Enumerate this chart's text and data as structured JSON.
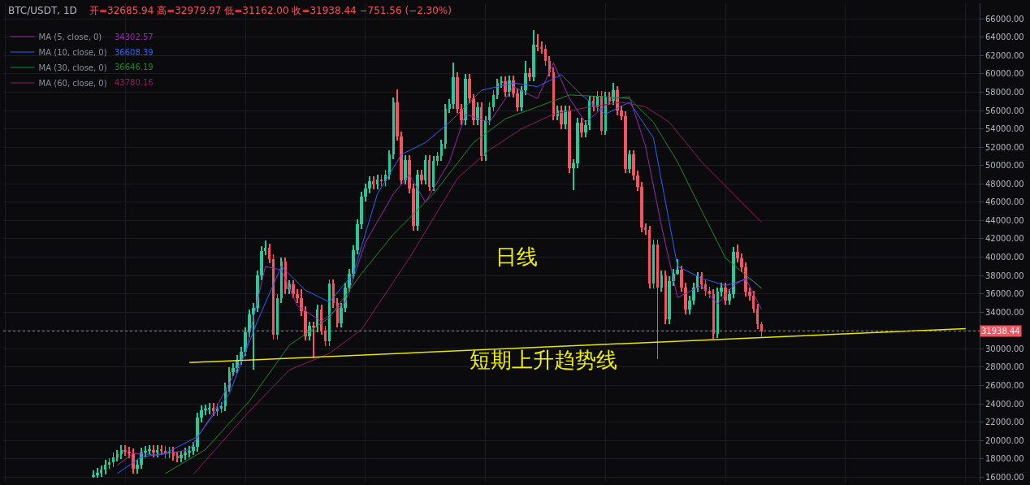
{
  "chart_data": {
    "type": "candlestick",
    "title": "BTC/USDT, 1D",
    "subtitle": "开=32685.94 高=32979.97 低=31162.00 收=31938.44 −751.56 (−2.30%)",
    "categories": [
      null,
      null,
      null,
      null,
      null,
      null,
      null,
      null,
      null,
      null,
      null,
      null,
      null,
      null,
      null,
      null,
      null,
      null,
      null,
      null,
      null,
      null,
      null,
      null,
      null,
      null,
      null,
      null,
      null,
      null,
      null,
      null,
      null,
      null,
      null,
      null,
      null,
      null,
      null,
      null,
      null,
      null,
      null,
      null,
      null,
      null,
      null,
      null,
      null,
      null,
      null,
      null,
      null,
      null,
      null,
      null,
      null,
      null,
      null,
      null,
      null,
      null,
      null,
      null,
      null,
      null,
      null,
      null,
      null,
      null,
      null,
      null,
      null,
      null,
      null,
      null,
      null,
      null,
      null,
      null,
      null,
      null,
      null,
      null,
      null,
      null,
      null,
      null,
      null,
      null,
      null,
      null,
      null,
      null,
      null,
      null,
      null,
      null,
      null,
      null,
      null,
      null,
      null,
      null,
      null,
      null,
      null,
      null,
      null,
      null,
      null,
      null,
      null,
      null,
      null,
      null,
      null,
      null,
      null,
      null,
      null,
      null,
      null,
      null,
      null,
      null,
      null,
      null,
      null,
      null,
      null,
      null,
      null,
      null,
      null,
      null,
      null,
      null,
      null,
      null,
      null,
      null,
      null,
      null,
      null,
      null,
      null,
      null,
      null,
      null,
      null,
      null,
      null,
      null,
      null,
      null,
      null,
      null,
      null,
      null,
      null,
      null,
      null,
      null,
      null,
      null,
      null,
      null,
      null,
      null,
      null,
      null,
      null,
      null,
      null,
      null,
      null,
      null,
      null,
      null,
      null,
      null,
      null,
      null,
      null,
      null,
      null,
      null,
      null,
      null,
      null,
      null,
      null,
      null,
      null,
      null,
      null,
      null,
      null,
      null,
      null,
      null,
      null,
      null,
      null,
      null,
      null,
      null,
      null,
      null,
      null,
      null,
      null,
      null,
      null,
      null,
      null,
      null,
      null,
      null,
      null,
      null,
      null,
      null,
      null,
      null,
      null,
      null,
      null,
      null,
      null,
      null,
      null,
      null,
      null,
      null,
      null,
      null,
      null,
      null,
      null,
      null,
      null,
      null
    ],
    "ohlc": [
      null,
      null,
      null,
      null,
      null,
      null,
      null,
      null,
      null,
      null,
      null,
      null,
      null,
      null,
      null,
      null,
      null,
      null,
      null,
      null,
      null,
      null,
      [
        16000,
        16700,
        15900,
        16200
      ],
      [
        16200,
        17000,
        15900,
        16500
      ],
      [
        16500,
        17300,
        16000,
        16800
      ],
      [
        16800,
        17900,
        16300,
        17400
      ],
      [
        17400,
        18100,
        16900,
        17600
      ],
      [
        17600,
        18700,
        17100,
        18200
      ],
      [
        18200,
        19000,
        17700,
        18500
      ],
      [
        18500,
        19500,
        18000,
        19000
      ],
      [
        19000,
        19500,
        18300,
        18800
      ],
      [
        18800,
        19300,
        18100,
        18600
      ],
      [
        18600,
        19100,
        16400,
        16900
      ],
      [
        16900,
        17900,
        16400,
        17400
      ],
      [
        17400,
        19200,
        16900,
        18700
      ],
      [
        18700,
        19400,
        18200,
        18900
      ],
      [
        18900,
        19500,
        18400,
        19000
      ],
      [
        19000,
        19500,
        18200,
        18700
      ],
      [
        18700,
        19500,
        18200,
        19000
      ],
      [
        19000,
        19500,
        18400,
        18900
      ],
      [
        18900,
        19400,
        18100,
        18600
      ],
      [
        18600,
        19300,
        18100,
        18800
      ],
      [
        18800,
        19300,
        17800,
        18300
      ],
      [
        18300,
        18800,
        17600,
        18100
      ],
      [
        18100,
        18900,
        17600,
        18400
      ],
      [
        18400,
        19200,
        17900,
        18700
      ],
      [
        18700,
        19400,
        18200,
        18900
      ],
      [
        18900,
        19800,
        18400,
        19300
      ],
      [
        19300,
        23000,
        18800,
        22500
      ],
      [
        22500,
        23800,
        22000,
        23300
      ],
      [
        23300,
        23900,
        22800,
        23400
      ],
      [
        23400,
        24100,
        22900,
        23600
      ],
      [
        23600,
        24100,
        22700,
        23200
      ],
      [
        23200,
        24000,
        22700,
        23500
      ],
      [
        23500,
        24200,
        23000,
        23700
      ],
      [
        23700,
        26300,
        23200,
        25800
      ],
      [
        25800,
        28000,
        25300,
        27500
      ],
      [
        27500,
        28400,
        27000,
        27900
      ],
      [
        27900,
        29300,
        27400,
        28800
      ],
      [
        28800,
        30200,
        28300,
        29700
      ],
      [
        29700,
        32300,
        29200,
        31800
      ],
      [
        31800,
        34300,
        31300,
        33800
      ],
      [
        33800,
        35000,
        27700,
        34500
      ],
      [
        34500,
        38500,
        34000,
        38000
      ],
      [
        38000,
        41200,
        37500,
        40700
      ],
      [
        40700,
        41800,
        40200,
        41000
      ],
      [
        41000,
        41500,
        39300,
        39800
      ],
      [
        39800,
        40300,
        31000,
        31500
      ],
      [
        31500,
        36000,
        31000,
        35500
      ],
      [
        35500,
        40000,
        35000,
        39500
      ],
      [
        39500,
        40000,
        36000,
        36500
      ],
      [
        36500,
        37500,
        36000,
        37000
      ],
      [
        37000,
        37500,
        35500,
        36000
      ],
      [
        36000,
        36500,
        35000,
        35500
      ],
      [
        35500,
        36500,
        33600,
        34100
      ],
      [
        34100,
        34600,
        30900,
        31400
      ],
      [
        31400,
        33000,
        30900,
        32500
      ],
      [
        32500,
        33000,
        29000,
        32300
      ],
      [
        32300,
        34800,
        31800,
        34300
      ],
      [
        34300,
        34800,
        31500,
        32000
      ],
      [
        32000,
        32500,
        30300,
        30800
      ],
      [
        30800,
        37600,
        30300,
        37100
      ],
      [
        37100,
        37600,
        34500,
        35000
      ],
      [
        35000,
        35500,
        32300,
        32800
      ],
      [
        32800,
        35000,
        32300,
        34500
      ],
      [
        34500,
        37200,
        34000,
        36700
      ],
      [
        36700,
        38700,
        36200,
        38200
      ],
      [
        38200,
        41300,
        37700,
        40800
      ],
      [
        40800,
        44100,
        40300,
        43600
      ],
      [
        43600,
        47100,
        43100,
        46600
      ],
      [
        46600,
        48000,
        46100,
        47500
      ],
      [
        47500,
        48800,
        47000,
        48300
      ],
      [
        48300,
        48800,
        47400,
        47900
      ],
      [
        47900,
        49000,
        47400,
        48500
      ],
      [
        48500,
        49000,
        47800,
        48300
      ],
      [
        48300,
        49500,
        47800,
        49000
      ],
      [
        49000,
        51700,
        48500,
        51200
      ],
      [
        51200,
        57400,
        50700,
        56900
      ],
      [
        56900,
        58300,
        52700,
        53200
      ],
      [
        53200,
        53700,
        47900,
        48400
      ],
      [
        48400,
        51100,
        47900,
        50600
      ],
      [
        50600,
        51100,
        47000,
        47500
      ],
      [
        47500,
        48000,
        42900,
        43400
      ],
      [
        43400,
        49500,
        42900,
        49000
      ],
      [
        49000,
        49500,
        47900,
        48400
      ],
      [
        48400,
        51100,
        47900,
        50600
      ],
      [
        50600,
        51100,
        47200,
        47700
      ],
      [
        47700,
        51000,
        47200,
        50500
      ],
      [
        50500,
        51500,
        50000,
        51000
      ],
      [
        51000,
        52850,
        50500,
        52350
      ],
      [
        52350,
        56700,
        51850,
        56200
      ],
      [
        56200,
        57200,
        55700,
        56700
      ],
      [
        56700,
        61200,
        56200,
        59650
      ],
      [
        59650,
        60150,
        55700,
        56200
      ],
      [
        56200,
        56700,
        54400,
        54900
      ],
      [
        54900,
        60000,
        54400,
        59500
      ],
      [
        59500,
        60000,
        56800,
        57300
      ],
      [
        57300,
        57800,
        54400,
        54900
      ],
      [
        54900,
        56900,
        54400,
        56400
      ],
      [
        56400,
        56900,
        50500,
        51000
      ],
      [
        51000,
        55400,
        50500,
        54900
      ],
      [
        54900,
        56900,
        54400,
        56400
      ],
      [
        56400,
        58200,
        55900,
        57700
      ],
      [
        57700,
        59500,
        57200,
        59000
      ],
      [
        59000,
        59700,
        58500,
        59200
      ],
      [
        59200,
        59700,
        57500,
        58000
      ],
      [
        58000,
        59800,
        57500,
        59300
      ],
      [
        59300,
        59800,
        57400,
        57900
      ],
      [
        57900,
        58400,
        55900,
        56400
      ],
      [
        56400,
        58700,
        55900,
        58200
      ],
      [
        58200,
        61400,
        57700,
        60100
      ],
      [
        60100,
        60600,
        59150,
        59650
      ],
      [
        59650,
        64800,
        59150,
        63200
      ],
      [
        63200,
        64300,
        62450,
        62950
      ],
      [
        62950,
        63500,
        62200,
        62700
      ],
      [
        62700,
        63200,
        60900,
        61400
      ],
      [
        61400,
        61900,
        59700,
        60200
      ],
      [
        60200,
        60700,
        54900,
        55400
      ],
      [
        55400,
        56500,
        54900,
        56000
      ],
      [
        56000,
        56500,
        54000,
        54500
      ],
      [
        54500,
        56500,
        54000,
        56000
      ],
      [
        56000,
        56500,
        49200,
        49700
      ],
      [
        49700,
        50700,
        47300,
        50200
      ],
      [
        50200,
        55200,
        49700,
        54700
      ],
      [
        54700,
        55200,
        53100,
        53600
      ],
      [
        53600,
        54900,
        53100,
        54400
      ],
      [
        54400,
        57600,
        53900,
        57100
      ],
      [
        57100,
        57600,
        55900,
        56400
      ],
      [
        56400,
        58100,
        55900,
        57600
      ],
      [
        57600,
        58100,
        53300,
        53800
      ],
      [
        53800,
        58000,
        53300,
        57500
      ],
      [
        57500,
        58000,
        56600,
        57100
      ],
      [
        57100,
        59000,
        56600,
        58200
      ],
      [
        58200,
        58700,
        55500,
        56000
      ],
      [
        56000,
        56500,
        54900,
        55400
      ],
      [
        55400,
        55900,
        49150,
        49650
      ],
      [
        49650,
        51700,
        49150,
        51200
      ],
      [
        51200,
        51700,
        48400,
        48900
      ],
      [
        48900,
        49400,
        47200,
        47700
      ],
      [
        47700,
        48200,
        42700,
        43200
      ],
      [
        43200,
        43700,
        42450,
        42950
      ],
      [
        42950,
        43450,
        36600,
        37100
      ],
      [
        37100,
        41900,
        36600,
        41400
      ],
      [
        41400,
        41900,
        28900,
        36700
      ],
      [
        36700,
        38500,
        36200,
        38000
      ],
      [
        38000,
        38500,
        32700,
        33200
      ],
      [
        33200,
        37900,
        32700,
        37400
      ],
      [
        37400,
        38700,
        36900,
        38200
      ],
      [
        38200,
        39800,
        38100,
        38600
      ],
      [
        38600,
        39100,
        36200,
        36700
      ],
      [
        36700,
        37200,
        33800,
        34300
      ],
      [
        34300,
        35800,
        33800,
        35300
      ],
      [
        35300,
        37200,
        34800,
        36700
      ],
      [
        36700,
        38400,
        36200,
        37900
      ],
      [
        37900,
        38400,
        36500,
        37000
      ],
      [
        37000,
        37500,
        35800,
        36300
      ],
      [
        36300,
        36800,
        35500,
        36000
      ],
      [
        36000,
        36500,
        31100,
        31650
      ],
      [
        31650,
        36700,
        31150,
        36200
      ],
      [
        36200,
        37200,
        35700,
        36700
      ],
      [
        36700,
        37200,
        34800,
        35300
      ],
      [
        35300,
        36500,
        34800,
        36000
      ],
      [
        36000,
        41100,
        35500,
        40600
      ],
      [
        40600,
        41400,
        39400,
        39900
      ],
      [
        39900,
        40400,
        38400,
        38900
      ],
      [
        38900,
        39400,
        35700,
        36200
      ],
      [
        36200,
        36700,
        35300,
        35800
      ],
      [
        35800,
        36300,
        33900,
        34400
      ],
      [
        34400,
        34900,
        32200,
        32685.94
      ],
      [
        32685.94,
        32979.97,
        31162.0,
        31938.44
      ],
      null,
      null,
      null,
      null,
      null,
      null,
      null,
      null,
      null,
      null,
      null,
      null,
      null,
      null,
      null,
      null,
      null,
      null,
      null,
      null,
      null,
      null,
      null,
      null,
      null,
      null,
      null,
      null,
      null,
      null,
      null,
      null,
      null,
      null,
      null,
      null,
      null,
      null,
      null,
      null,
      null,
      null,
      null,
      null,
      null,
      null,
      null,
      null,
      null,
      null,
      null,
      null,
      null,
      null
    ],
    "series": [
      {
        "name": "MA (5, close, 0)",
        "type": "line",
        "color": "#9c27b0",
        "values": [
          null,
          null,
          null,
          null,
          null,
          null,
          null,
          null,
          null,
          null,
          null,
          null,
          null,
          null,
          null,
          null,
          null,
          null,
          null,
          null,
          null,
          null,
          null,
          null,
          null,
          null,
          null,
          null,
          17300,
          null,
          null,
          null,
          18600,
          null,
          null,
          null,
          null,
          null,
          18400,
          null,
          null,
          null,
          null,
          null,
          null,
          null,
          19000,
          null,
          null,
          null,
          null,
          null,
          23000,
          null,
          null,
          null,
          null,
          null,
          null,
          null,
          29500,
          null,
          null,
          null,
          null,
          39000,
          null,
          null,
          null,
          38600,
          null,
          null,
          null,
          34700,
          null,
          null,
          null,
          null,
          null,
          33000,
          null,
          null,
          null,
          null,
          null,
          35100,
          null,
          null,
          null,
          null,
          41600,
          null,
          null,
          null,
          null,
          null,
          null,
          46900,
          null,
          null,
          null,
          49000,
          null,
          null,
          null,
          46000,
          null,
          null,
          null,
          null,
          null,
          50400,
          null,
          null,
          null,
          55600,
          null,
          null,
          null,
          null,
          null,
          54700,
          null,
          null,
          null,
          null,
          null,
          58600,
          null,
          null,
          null,
          null,
          null,
          57300,
          null,
          null,
          null,
          61200,
          null,
          null,
          null,
          57300,
          null,
          null,
          null,
          54700,
          null,
          null,
          null,
          null,
          null,
          null,
          57300,
          null,
          null,
          null,
          57500,
          null,
          null,
          null,
          52100,
          null,
          null,
          null,
          43400,
          null,
          null,
          null,
          35600,
          null,
          null,
          null,
          null,
          null,
          36900,
          null,
          null,
          null,
          34900,
          null,
          null,
          null,
          36900,
          null,
          null,
          37700,
          null,
          36000,
          null,
          34300,
          null,
          null,
          null,
          null,
          null,
          null,
          null,
          null,
          null,
          null,
          null,
          null,
          null,
          null,
          null,
          null,
          null,
          null,
          null,
          null,
          null,
          null,
          null,
          null,
          null,
          null,
          null,
          null,
          null,
          null,
          null,
          null,
          null,
          null,
          null,
          null,
          null,
          null,
          null,
          null,
          null,
          null,
          null,
          null,
          null,
          null,
          null,
          null,
          null,
          null,
          null,
          null,
          null,
          null
        ]
      },
      {
        "name": "MA (10, close, 0)",
        "type": "line",
        "color": "#2962ff",
        "values": [
          null,
          null,
          null,
          null,
          null,
          null,
          null,
          null,
          null,
          null,
          null,
          null,
          null,
          null,
          null,
          null,
          null,
          null,
          null,
          null,
          null,
          null,
          null,
          null,
          null,
          null,
          null,
          null,
          16400,
          null,
          null,
          null,
          null,
          null,
          18200,
          null,
          null,
          null,
          null,
          null,
          18600,
          null,
          null,
          null,
          null,
          null,
          null,
          null,
          20400,
          null,
          null,
          null,
          null,
          null,
          null,
          null,
          25100,
          null,
          null,
          null,
          null,
          null,
          null,
          33000,
          null,
          null,
          null,
          null,
          null,
          39000,
          null,
          null,
          null,
          null,
          null,
          36400,
          null,
          null,
          null,
          null,
          null,
          35100,
          null,
          null,
          null,
          null,
          null,
          38200,
          null,
          null,
          null,
          null,
          null,
          46900,
          null,
          null,
          null,
          null,
          null,
          51200,
          null,
          null,
          null,
          null,
          null,
          52500,
          null,
          null,
          null,
          null,
          null,
          54700,
          null,
          null,
          null,
          null,
          null,
          null,
          null,
          58200,
          null,
          null,
          null,
          null,
          null,
          null,
          null,
          59000,
          null,
          null,
          null,
          null,
          null,
          58600,
          null,
          null,
          null,
          null,
          null,
          59900,
          null,
          null,
          null,
          null,
          57700,
          null,
          null,
          null,
          null,
          null,
          55600,
          null,
          null,
          null,
          null,
          null,
          56900,
          null,
          null,
          null,
          null,
          null,
          53000,
          null,
          null,
          null,
          null,
          null,
          39000,
          null,
          null,
          null,
          null,
          null,
          37700,
          null,
          null,
          null,
          null,
          null,
          36900,
          null,
          null,
          null,
          null,
          null,
          37700,
          null,
          null,
          36600,
          null,
          null,
          null,
          null,
          null,
          null,
          null,
          null,
          null,
          null,
          null,
          null,
          null,
          null,
          null,
          null,
          null,
          null,
          null,
          null,
          null,
          null,
          null,
          null,
          null,
          null,
          null,
          null,
          null,
          null,
          null,
          null,
          null,
          null,
          null,
          null,
          null,
          null,
          null,
          null,
          null,
          null,
          null,
          null,
          null,
          null,
          null,
          null,
          null,
          null,
          null,
          null,
          null,
          null
        ]
      },
      {
        "name": "MA (30, close, 0)",
        "type": "line",
        "color": "#1b8a2e",
        "values": [
          null,
          null,
          null,
          null,
          null,
          null,
          null,
          null,
          null,
          null,
          null,
          null,
          null,
          null,
          null,
          null,
          null,
          null,
          null,
          null,
          null,
          null,
          null,
          null,
          null,
          null,
          null,
          null,
          null,
          null,
          null,
          null,
          null,
          null,
          null,
          null,
          null,
          null,
          null,
          null,
          16400,
          null,
          null,
          null,
          null,
          null,
          null,
          null,
          null,
          null,
          19000,
          null,
          null,
          null,
          null,
          null,
          null,
          null,
          null,
          null,
          null,
          24300,
          null,
          null,
          null,
          null,
          null,
          null,
          null,
          null,
          null,
          30400,
          null,
          null,
          null,
          null,
          null,
          null,
          null,
          null,
          null,
          33400,
          null,
          null,
          null,
          null,
          null,
          null,
          null,
          38200,
          null,
          null,
          null,
          null,
          null,
          null,
          null,
          42500,
          null,
          null,
          null,
          null,
          null,
          null,
          null,
          null,
          null,
          46900,
          null,
          null,
          null,
          null,
          null,
          null,
          null,
          null,
          null,
          52500,
          null,
          null,
          null,
          null,
          null,
          null,
          null,
          55100,
          null,
          null,
          null,
          null,
          null,
          null,
          null,
          56400,
          null,
          null,
          null,
          null,
          null,
          null,
          null,
          57700,
          null,
          null,
          null,
          null,
          null,
          null,
          null,
          null,
          57500,
          null,
          null,
          null,
          null,
          null,
          57300,
          null,
          null,
          null,
          null,
          null,
          54700,
          null,
          null,
          null,
          null,
          null,
          50400,
          null,
          null,
          null,
          null,
          null,
          45100,
          null,
          null,
          null,
          null,
          null,
          39900,
          null,
          null,
          null,
          null,
          null,
          37700,
          null,
          null,
          36600,
          null,
          null,
          null,
          null,
          null,
          null,
          null,
          null,
          null,
          null,
          null,
          null,
          null,
          null,
          null,
          null,
          null,
          null,
          null,
          null,
          null,
          null,
          null,
          null,
          null,
          null,
          null,
          null,
          null,
          null,
          null,
          null,
          null,
          null,
          null,
          null,
          null,
          null,
          null,
          null,
          null,
          null,
          null,
          null,
          null,
          null,
          null,
          null,
          null,
          null,
          null,
          null,
          null,
          null
        ]
      },
      {
        "name": "MA (60, close, 0)",
        "type": "line",
        "color": "#8e1f5e",
        "values": [
          null,
          null,
          null,
          null,
          null,
          null,
          null,
          null,
          null,
          null,
          null,
          null,
          null,
          null,
          null,
          null,
          null,
          null,
          null,
          null,
          null,
          null,
          null,
          null,
          null,
          null,
          null,
          null,
          null,
          null,
          null,
          null,
          null,
          null,
          null,
          null,
          null,
          null,
          null,
          null,
          null,
          null,
          null,
          null,
          null,
          null,
          null,
          16300,
          null,
          null,
          null,
          null,
          null,
          null,
          null,
          null,
          null,
          null,
          null,
          null,
          null,
          23200,
          null,
          null,
          null,
          null,
          null,
          null,
          null,
          null,
          null,
          27700,
          null,
          null,
          null,
          null,
          null,
          null,
          null,
          null,
          null,
          29500,
          null,
          null,
          null,
          null,
          null,
          null,
          null,
          32100,
          null,
          null,
          null,
          null,
          null,
          null,
          null,
          null,
          null,
          null,
          null,
          39900,
          null,
          null,
          null,
          null,
          null,
          null,
          null,
          null,
          null,
          null,
          null,
          48600,
          null,
          null,
          null,
          null,
          null,
          null,
          null,
          51700,
          null,
          null,
          null,
          null,
          null,
          null,
          null,
          54000,
          null,
          null,
          null,
          null,
          null,
          null,
          null,
          55600,
          null,
          null,
          null,
          null,
          null,
          null,
          null,
          null,
          56400,
          null,
          null,
          null,
          null,
          null,
          null,
          null,
          56900,
          null,
          null,
          null,
          null,
          null,
          56400,
          null,
          null,
          null,
          null,
          null,
          54700,
          null,
          null,
          null,
          null,
          null,
          null,
          null,
          50400,
          null,
          null,
          null,
          null,
          null,
          null,
          null,
          null,
          null,
          null,
          null,
          null,
          null,
          null,
          43800,
          null,
          null,
          null,
          null,
          null,
          null,
          null,
          null,
          null,
          null,
          null,
          null,
          null,
          null,
          null,
          null,
          null,
          null,
          null,
          null,
          null,
          null,
          null,
          null,
          null,
          null,
          null,
          null,
          null,
          null,
          null,
          null,
          null,
          null,
          null,
          null,
          null,
          null,
          null,
          null,
          null,
          null,
          null,
          null,
          null,
          null,
          null,
          null,
          null,
          null,
          null,
          null,
          null,
          null
        ]
      },
      {
        "type": "line",
        "color": "#e6e600",
        "values": [
          null,
          null,
          null,
          null,
          null,
          null,
          null,
          null,
          null,
          null,
          null,
          null,
          null,
          null,
          null,
          null,
          null,
          null,
          null,
          null,
          null,
          null,
          null,
          null,
          null,
          null,
          null,
          null,
          null,
          null,
          null,
          null,
          null,
          null,
          null,
          null,
          null,
          null,
          null,
          null,
          null,
          null,
          null,
          null,
          null,
          null,
          28500,
          null,
          null,
          null,
          null,
          null,
          null,
          null,
          null,
          null,
          null,
          null,
          null,
          null,
          null,
          null,
          null,
          null,
          null,
          null,
          null,
          null,
          null,
          null,
          null,
          null,
          null,
          null,
          null,
          null,
          null,
          null,
          null,
          null,
          null,
          null,
          null,
          null,
          null,
          null,
          null,
          null,
          null,
          null,
          null,
          null,
          null,
          null,
          null,
          null,
          null,
          null,
          null,
          null,
          null,
          null,
          null,
          null,
          null,
          null,
          null,
          null,
          null,
          null,
          null,
          null,
          null,
          null,
          null,
          null,
          null,
          null,
          null,
          null,
          null,
          null,
          null,
          null,
          null,
          null,
          null,
          null,
          null,
          null,
          null,
          null,
          null,
          null,
          null,
          null,
          null,
          null,
          null,
          null,
          null,
          null,
          null,
          null,
          null,
          null,
          null,
          null,
          null,
          null,
          null,
          null,
          null,
          null,
          null,
          null,
          null,
          null,
          null,
          null,
          null,
          null,
          null,
          null,
          null,
          null,
          null,
          null,
          null,
          null,
          null,
          null,
          null,
          null,
          null,
          null,
          null,
          null,
          null,
          null,
          null,
          null,
          null,
          null,
          null,
          null,
          null,
          null,
          null,
          null,
          null,
          null,
          null,
          null,
          null,
          null,
          null,
          null,
          null,
          null,
          null,
          null,
          null,
          null,
          null,
          null,
          null,
          null,
          null,
          null,
          null,
          null,
          null,
          null,
          null,
          null,
          null,
          null,
          null,
          null,
          null,
          null,
          null,
          null,
          null,
          null,
          null,
          null,
          null,
          null,
          null,
          null,
          null,
          null,
          null,
          null,
          null,
          null,
          null,
          null,
          32200,
          null,
          null,
          null
        ]
      }
    ],
    "ref_lines": [
      {
        "axis": "y",
        "value": 31938.44,
        "label": "31938.44",
        "color": "#f7525f",
        "line_style": "dotted"
      }
    ],
    "annotations": [
      "日线",
      "短期上升趋势线",
      "34302.57",
      "36608.39",
      "36646.19",
      "43780.16"
    ],
    "ylim": [
      15500,
      67700
    ],
    "yticks": [
      {
        "value": 16000,
        "label": "16000.00"
      },
      {
        "value": 18000,
        "label": "18000.00"
      },
      {
        "value": 20000,
        "label": "20000.00"
      },
      {
        "value": 22000,
        "label": "22000.00"
      },
      {
        "value": 24000,
        "label": "24000.00"
      },
      {
        "value": 26000,
        "label": "26000.00"
      },
      {
        "value": 28000,
        "label": "28000.00"
      },
      {
        "value": 30000,
        "label": "30000.00"
      },
      {
        "value": 32000,
        "label": null
      },
      {
        "value": 34000,
        "label": "34000.00"
      },
      {
        "value": 36000,
        "label": "36000.00"
      },
      {
        "value": 38000,
        "label": "38000.00"
      },
      {
        "value": 40000,
        "label": "40000.00"
      },
      {
        "value": 42000,
        "label": "42000.00"
      },
      {
        "value": 44000,
        "label": "44000.00"
      },
      {
        "value": 46000,
        "label": "46000.00"
      },
      {
        "value": 48000,
        "label": "48000.00"
      },
      {
        "value": 50000,
        "label": "50000.00"
      },
      {
        "value": 52000,
        "label": "52000.00"
      },
      {
        "value": 54000,
        "label": "54000.00"
      },
      {
        "value": 56000,
        "label": "56000.00"
      },
      {
        "value": 58000,
        "label": "58000.00"
      },
      {
        "value": 60000,
        "label": "60000.00"
      },
      {
        "value": 62000,
        "label": "62000.00"
      },
      {
        "value": 64000,
        "label": "64000.00"
      },
      {
        "value": 66000,
        "label": "66000.00"
      }
    ],
    "grid": true,
    "legend": "top left",
    "marker": "none",
    "line_style": "solid",
    "tick_labels": "y"
  }
}
